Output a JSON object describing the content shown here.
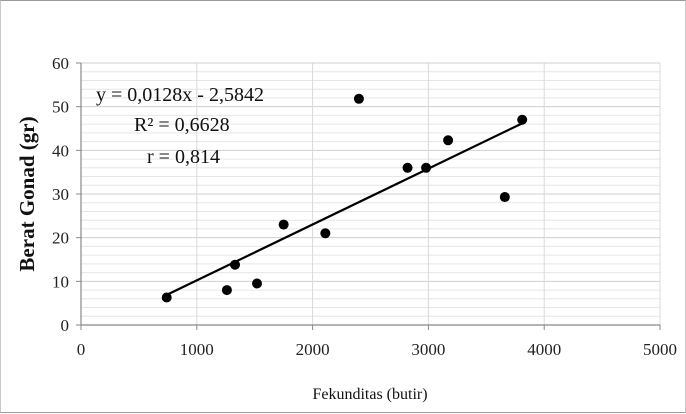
{
  "chart_data": {
    "type": "scatter",
    "title": "",
    "xlabel": "Fekunditas (butir)",
    "ylabel": "Berat Gonad (gr)",
    "xlim": [
      0,
      5000
    ],
    "ylim": [
      0,
      60
    ],
    "x_ticks": [
      0,
      1000,
      2000,
      3000,
      4000,
      5000
    ],
    "y_ticks": [
      0,
      10,
      20,
      30,
      40,
      50,
      60
    ],
    "grid": true,
    "points": [
      {
        "x": 740,
        "y": 6.3
      },
      {
        "x": 1260,
        "y": 8.0
      },
      {
        "x": 1330,
        "y": 13.8
      },
      {
        "x": 1520,
        "y": 9.5
      },
      {
        "x": 1750,
        "y": 23.0
      },
      {
        "x": 2110,
        "y": 21.0
      },
      {
        "x": 2400,
        "y": 51.8
      },
      {
        "x": 2820,
        "y": 36.0
      },
      {
        "x": 2980,
        "y": 36.0
      },
      {
        "x": 3170,
        "y": 42.3
      },
      {
        "x": 3660,
        "y": 29.3
      },
      {
        "x": 3810,
        "y": 47.0
      }
    ],
    "trendline": {
      "type": "linear",
      "slope": 0.0128,
      "intercept": -2.5842,
      "x_range": [
        740,
        3810
      ]
    },
    "annotations": [
      "y = 0,0128x - 2,5842",
      "R² = 0,6628",
      "r = 0,814"
    ],
    "colors": {
      "points": "#000000",
      "trendline": "#000000",
      "grid": "#d9d9d9",
      "axis": "#888888"
    }
  }
}
